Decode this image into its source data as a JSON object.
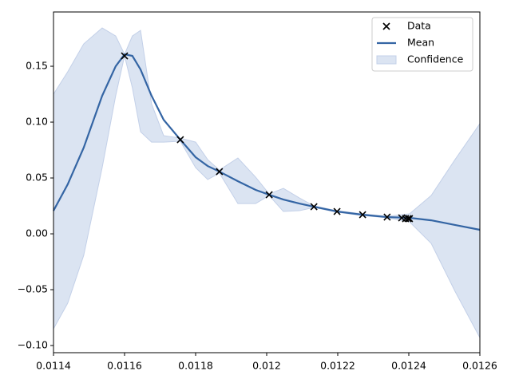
{
  "chart_data": {
    "type": "line",
    "xlim": [
      0.0114,
      0.0126
    ],
    "xticks": [
      0.0114,
      0.0116,
      0.0118,
      0.012,
      {
        "value": 0.0122,
        "label": "0.0122"
      },
      0.0124,
      0.0126
    ],
    "ylim": [
      -0.1064,
      0.1986
    ],
    "yticks": [
      {
        "value": -0.1,
        "label": "−0.10"
      },
      {
        "value": -0.05,
        "label": "−0.05"
      },
      {
        "value": 0,
        "label": "0.00"
      },
      0.05,
      {
        "value": 0.1,
        "label": "0.10"
      },
      0.15
    ],
    "legend": "upper right",
    "series": [
      {
        "name": "Data",
        "type": "scatter",
        "color": "#000000",
        "x": [
          0.0116,
          0.011757,
          0.011867,
          0.012007,
          0.012133,
          0.012198,
          0.01227,
          0.012339,
          0.01238,
          0.012391,
          0.012398,
          0.012402
        ],
        "values": [
          0.1593,
          0.0843,
          0.0557,
          0.035,
          0.0243,
          0.02,
          0.0171,
          0.015,
          0.0143,
          0.0136,
          0.0136,
          0.0136
        ]
      },
      {
        "name": "Mean",
        "type": "line",
        "color": "#3465a4",
        "x": [
          0.0114,
          0.01144,
          0.011485,
          0.011537,
          0.011575,
          0.0116,
          0.011622,
          0.011645,
          0.011676,
          0.01171,
          0.011757,
          0.0118,
          0.011834,
          0.011867,
          0.011919,
          0.011969,
          0.012007,
          0.012047,
          0.012092,
          0.012133,
          0.012198,
          0.01227,
          0.012339,
          0.012402,
          0.012463,
          0.01253,
          0.0126
        ],
        "values": [
          0.0207,
          0.0443,
          0.0771,
          0.1236,
          0.15,
          0.1607,
          0.1593,
          0.1471,
          0.1236,
          0.1021,
          0.0843,
          0.0686,
          0.0607,
          0.0557,
          0.0471,
          0.0393,
          0.035,
          0.0307,
          0.0271,
          0.0243,
          0.02,
          0.0171,
          0.015,
          0.0143,
          0.0121,
          0.0079,
          0.0036
        ]
      },
      {
        "name": "Confidence",
        "type": "band",
        "color": "#dbe4f2",
        "x": [
          0.0114,
          0.01144,
          0.011485,
          0.011537,
          0.011575,
          0.0116,
          0.011622,
          0.011645,
          0.011676,
          0.01171,
          0.011757,
          0.0118,
          0.011834,
          0.011867,
          0.011919,
          0.011969,
          0.012007,
          0.012047,
          0.012092,
          0.012133,
          0.012198,
          0.01227,
          0.012339,
          0.012402,
          0.012463,
          0.01253,
          0.0126
        ],
        "upper": [
          0.125,
          0.145,
          0.17,
          0.1843,
          0.1771,
          0.1607,
          0.1771,
          0.1821,
          0.1164,
          0.0879,
          0.0857,
          0.0821,
          0.0664,
          0.0571,
          0.0679,
          0.0507,
          0.0357,
          0.0407,
          0.0321,
          0.025,
          0.0207,
          0.0179,
          0.0157,
          0.0179,
          0.0343,
          0.0664,
          0.0986
        ],
        "lower": [
          -0.085,
          -0.0621,
          -0.0193,
          0.0593,
          0.1236,
          0.1593,
          0.1307,
          0.0914,
          0.0821,
          0.0821,
          0.0829,
          0.0593,
          0.0486,
          0.0543,
          0.0271,
          0.0271,
          0.0343,
          0.02,
          0.0207,
          0.0236,
          0.0193,
          0.0164,
          0.0143,
          0.0107,
          -0.0086,
          -0.0514,
          -0.0929
        ]
      }
    ]
  }
}
